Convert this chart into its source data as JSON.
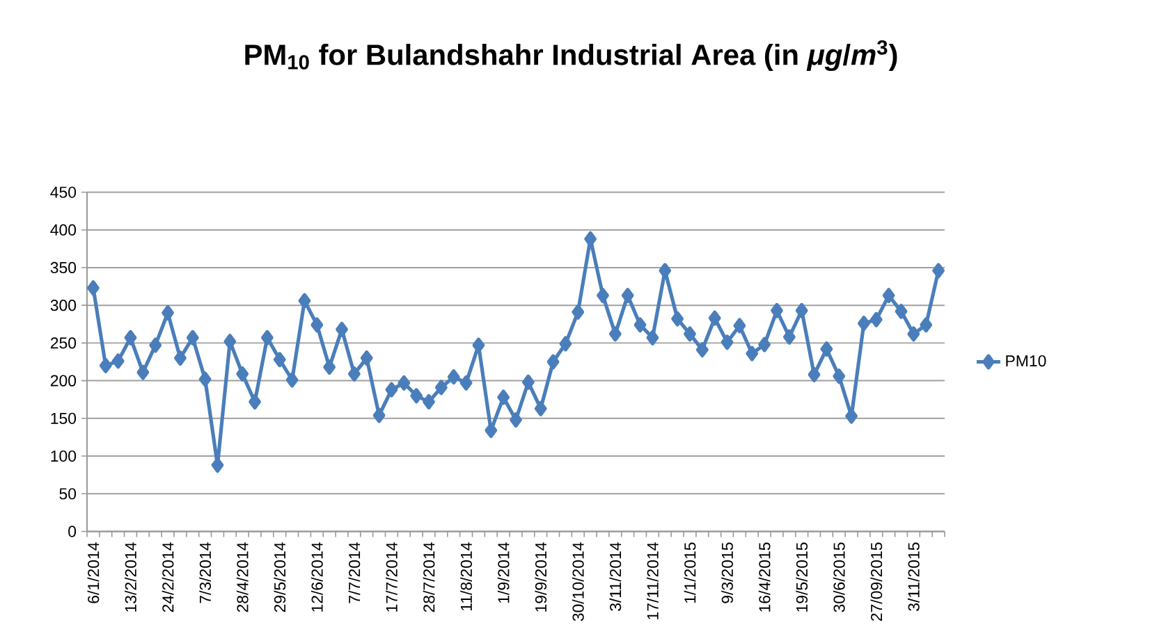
{
  "chart_data": {
    "type": "line",
    "title": "PM$_{10}$ for Bulandshahr Industrial Area (in *μg*/*m*$^{3}$)",
    "categories": [
      "6/1/2014",
      null,
      null,
      "13/2/2014",
      null,
      null,
      "24/2/2014",
      null,
      null,
      "7/3/2014",
      null,
      null,
      "28/4/2014",
      null,
      null,
      "29/5/2014",
      null,
      null,
      "12/6/2014",
      null,
      null,
      "7/7/2014",
      null,
      null,
      "17/7/2014",
      null,
      null,
      "28/7/2014",
      null,
      null,
      "11/8/2014",
      null,
      null,
      "1/9/2014",
      null,
      null,
      "19/9/2014",
      null,
      null,
      "30/10/2014",
      null,
      null,
      "3/11/2014",
      null,
      null,
      "17/11/2014",
      null,
      null,
      "1/1/2015",
      null,
      null,
      "9/3/2015",
      null,
      null,
      "16/4/2015",
      null,
      null,
      "19/5/2015",
      null,
      null,
      "30/6/2015",
      null,
      null,
      "27/09/2015",
      null,
      null,
      "3/11/2015",
      null,
      null
    ],
    "series": [
      {
        "name": "PM10",
        "color": "#4a7ebb",
        "values": [
          323,
          220,
          226,
          257,
          211,
          247,
          290,
          230,
          257,
          202,
          88,
          252,
          209,
          172,
          257,
          228,
          201,
          306,
          274,
          218,
          268,
          209,
          230,
          154,
          188,
          197,
          180,
          172,
          191,
          205,
          197,
          247,
          134,
          178,
          148,
          198,
          163,
          225,
          249,
          291,
          388,
          313,
          262,
          313,
          274,
          257,
          346,
          282,
          262,
          241,
          283,
          251,
          273,
          236,
          248,
          293,
          258,
          293,
          208,
          242,
          206,
          153,
          276,
          281,
          313,
          292,
          262,
          274,
          346
        ]
      }
    ],
    "ylim": [
      0,
      450
    ],
    "yticks": [
      0,
      50,
      100,
      150,
      200,
      250,
      300,
      350,
      400,
      450
    ],
    "grid": "y",
    "legend": "right",
    "marker": "diamond"
  }
}
